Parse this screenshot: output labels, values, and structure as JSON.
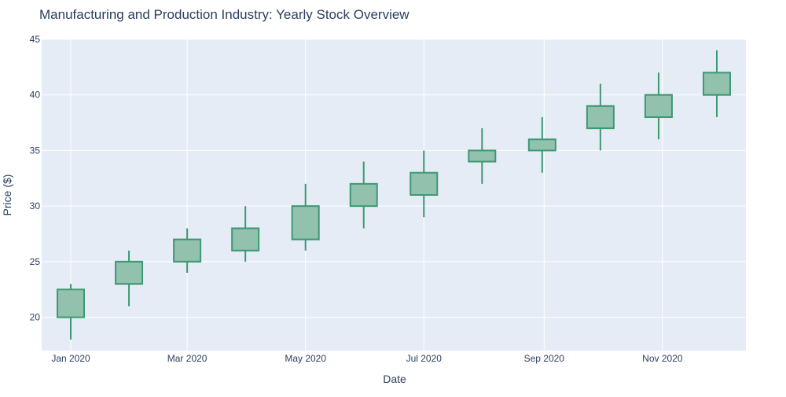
{
  "chart_data": {
    "type": "candlestick",
    "title": "Manufacturing and Production Industry: Yearly Stock Overview",
    "xlabel": "Date",
    "ylabel": "Price ($)",
    "ylim": [
      17,
      45
    ],
    "y_ticks": [
      20,
      25,
      30,
      35,
      40,
      45
    ],
    "x_ticks": [
      {
        "date": "2020-01-01",
        "label": "Jan 2020"
      },
      {
        "date": "2020-03-01",
        "label": "Mar 2020"
      },
      {
        "date": "2020-05-01",
        "label": "May 2020"
      },
      {
        "date": "2020-07-01",
        "label": "Jul 2020"
      },
      {
        "date": "2020-09-01",
        "label": "Sep 2020"
      },
      {
        "date": "2020-11-01",
        "label": "Nov 2020"
      }
    ],
    "grid": true,
    "colors": {
      "increasing_line": "#3d9970",
      "increasing_fill": "#92c1ad",
      "plot_bg": "#e5ecf6",
      "grid": "#ffffff",
      "text": "#2a3f5f"
    },
    "candles": [
      {
        "date": "2020-01-01",
        "open": 20,
        "high": 23,
        "low": 18,
        "close": 22.5
      },
      {
        "date": "2020-01-31",
        "open": 23,
        "high": 26,
        "low": 21,
        "close": 25
      },
      {
        "date": "2020-03-01",
        "open": 25,
        "high": 28,
        "low": 24,
        "close": 27
      },
      {
        "date": "2020-03-31",
        "open": 26,
        "high": 30,
        "low": 25,
        "close": 28
      },
      {
        "date": "2020-05-01",
        "open": 27,
        "high": 32,
        "low": 26,
        "close": 30
      },
      {
        "date": "2020-05-31",
        "open": 30,
        "high": 34,
        "low": 28,
        "close": 32
      },
      {
        "date": "2020-07-01",
        "open": 31,
        "high": 35,
        "low": 29,
        "close": 33
      },
      {
        "date": "2020-07-31",
        "open": 34,
        "high": 37,
        "low": 32,
        "close": 35
      },
      {
        "date": "2020-08-31",
        "open": 35,
        "high": 38,
        "low": 33,
        "close": 36
      },
      {
        "date": "2020-09-30",
        "open": 37,
        "high": 41,
        "low": 35,
        "close": 39
      },
      {
        "date": "2020-10-30",
        "open": 38,
        "high": 42,
        "low": 36,
        "close": 40
      },
      {
        "date": "2020-11-29",
        "open": 40,
        "high": 44,
        "low": 38,
        "close": 42
      }
    ]
  }
}
